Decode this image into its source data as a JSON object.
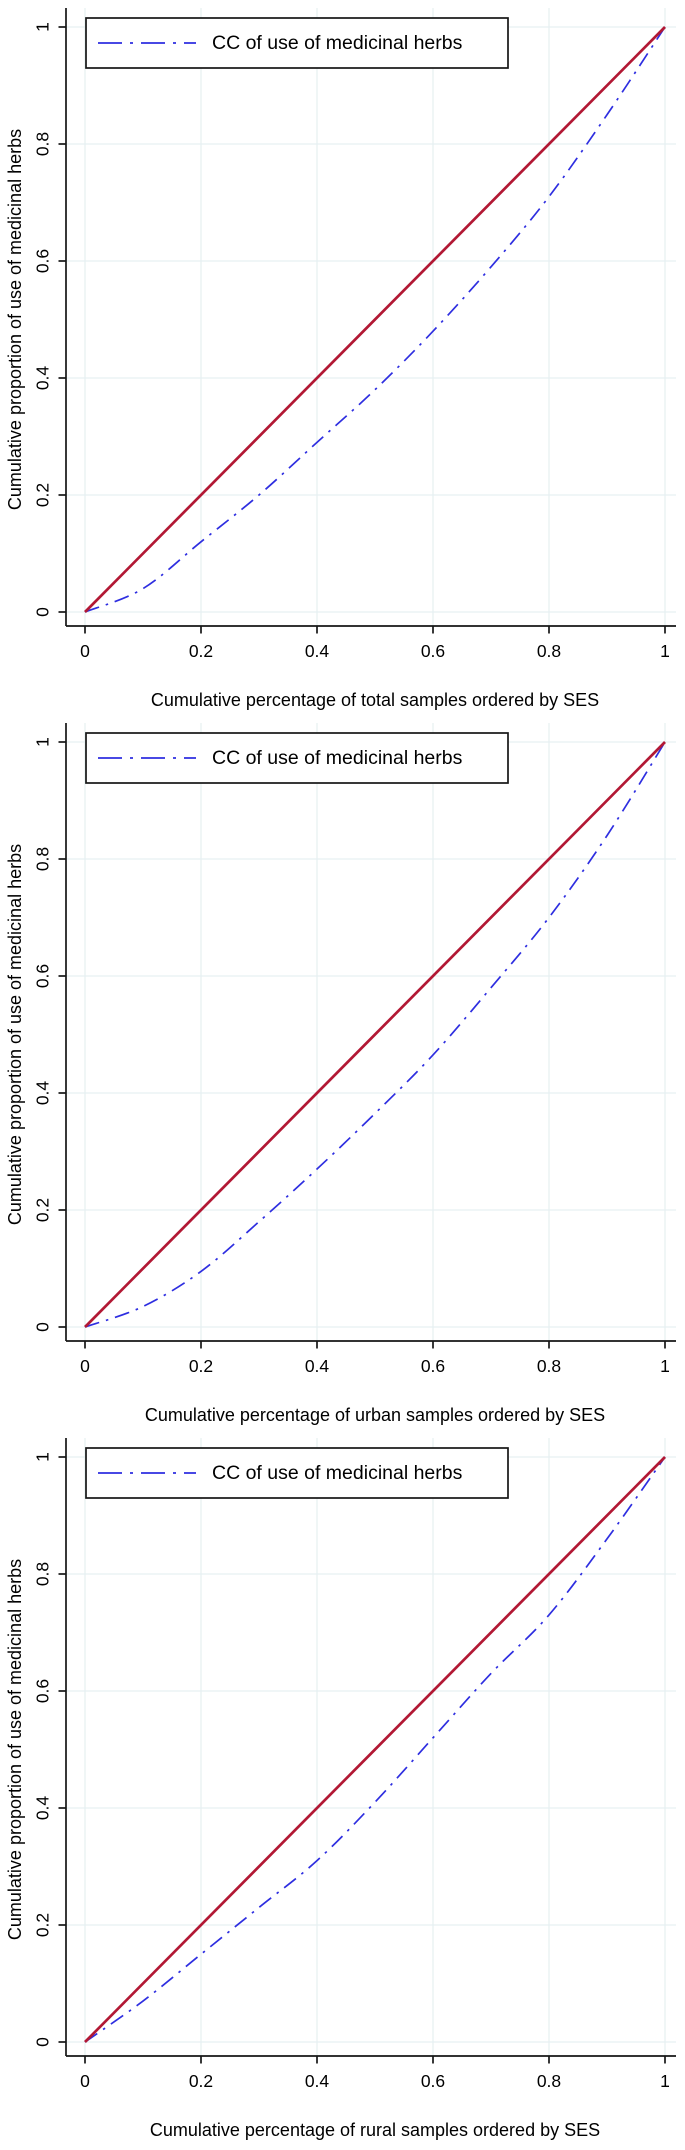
{
  "colors": {
    "background": "#ffffff",
    "grid": "#e7f0f2",
    "axis": "#161616",
    "text": "#000000",
    "cc_line": "#2e2ee0",
    "equality_line": "#b21834"
  },
  "chart_data": [
    {
      "type": "line",
      "legend": {
        "position": "top-left",
        "border": true,
        "entries": [
          {
            "label": "CC of use of medicinal herbs",
            "color": "#2e2ee0",
            "line_style": "dash-dot"
          }
        ]
      },
      "x_axis": {
        "title": "Cumulative percentage of total samples ordered by SES",
        "range": [
          0,
          1
        ],
        "tick_values": [
          0,
          0.2,
          0.4,
          0.6,
          0.8,
          1
        ],
        "tick_labels": [
          "0",
          "0.2",
          "0.4",
          "0.6",
          "0.8",
          "1"
        ]
      },
      "y_axis": {
        "title": "Cumulative proportion of use of medicinal herbs",
        "range": [
          0,
          1
        ],
        "tick_values": [
          0,
          0.2,
          0.4,
          0.6,
          0.8,
          1
        ],
        "tick_labels": [
          "0",
          "0.2",
          "0.4",
          "0.6",
          "0.8",
          "1"
        ]
      },
      "grid": true,
      "series": [
        {
          "name": "CC of use of medicinal herbs",
          "color": "#2e2ee0",
          "line_style": "dash-dot",
          "x": [
            0,
            0.1,
            0.2,
            0.3,
            0.4,
            0.5,
            0.6,
            0.7,
            0.8,
            0.9,
            1
          ],
          "y": [
            0,
            0.04,
            0.12,
            0.2,
            0.29,
            0.38,
            0.48,
            0.59,
            0.71,
            0.85,
            1
          ]
        },
        {
          "name": "Line of equality",
          "color": "#b21834",
          "line_style": "solid",
          "x": [
            0,
            1
          ],
          "y": [
            0,
            1
          ]
        }
      ]
    },
    {
      "type": "line",
      "legend": {
        "position": "top-left",
        "border": true,
        "entries": [
          {
            "label": "CC of use of medicinal herbs",
            "color": "#2e2ee0",
            "line_style": "dash-dot"
          }
        ]
      },
      "x_axis": {
        "title": "Cumulative percentage of urban samples ordered by SES",
        "range": [
          0,
          1
        ],
        "tick_values": [
          0,
          0.2,
          0.4,
          0.6,
          0.8,
          1
        ],
        "tick_labels": [
          "0",
          "0.2",
          "0.4",
          "0.6",
          "0.8",
          "1"
        ]
      },
      "y_axis": {
        "title": "Cumulative proportion of use of medicinal herbs",
        "range": [
          0,
          1
        ],
        "tick_values": [
          0,
          0.2,
          0.4,
          0.6,
          0.8,
          1
        ],
        "tick_labels": [
          "0",
          "0.2",
          "0.4",
          "0.6",
          "0.8",
          "1"
        ]
      },
      "grid": true,
      "series": [
        {
          "name": "CC of use of medicinal herbs",
          "color": "#2e2ee0",
          "line_style": "dash-dot",
          "x": [
            0,
            0.1,
            0.2,
            0.3,
            0.4,
            0.5,
            0.6,
            0.7,
            0.8,
            0.9,
            1
          ],
          "y": [
            0,
            0.035,
            0.095,
            0.18,
            0.27,
            0.365,
            0.465,
            0.58,
            0.7,
            0.84,
            1
          ]
        },
        {
          "name": "Line of equality",
          "color": "#b21834",
          "line_style": "solid",
          "x": [
            0,
            1
          ],
          "y": [
            0,
            1
          ]
        }
      ]
    },
    {
      "type": "line",
      "legend": {
        "position": "top-left",
        "border": true,
        "entries": [
          {
            "label": "CC of use of medicinal herbs",
            "color": "#2e2ee0",
            "line_style": "dash-dot"
          }
        ]
      },
      "x_axis": {
        "title": "Cumulative percentage of rural samples ordered by SES",
        "range": [
          0,
          1
        ],
        "tick_values": [
          0,
          0.2,
          0.4,
          0.6,
          0.8,
          1
        ],
        "tick_labels": [
          "0",
          "0.2",
          "0.4",
          "0.6",
          "0.8",
          "1"
        ]
      },
      "y_axis": {
        "title": "Cumulative proportion of use of medicinal herbs",
        "range": [
          0,
          1
        ],
        "tick_values": [
          0,
          0.2,
          0.4,
          0.6,
          0.8,
          1
        ],
        "tick_labels": [
          "0",
          "0.2",
          "0.4",
          "0.6",
          "0.8",
          "1"
        ]
      },
      "grid": true,
      "series": [
        {
          "name": "CC of use of medicinal herbs",
          "color": "#2e2ee0",
          "line_style": "dash-dot",
          "x": [
            0,
            0.1,
            0.2,
            0.3,
            0.4,
            0.5,
            0.6,
            0.7,
            0.8,
            0.9,
            1
          ],
          "y": [
            0,
            0.07,
            0.15,
            0.23,
            0.31,
            0.41,
            0.52,
            0.63,
            0.73,
            0.86,
            1
          ]
        },
        {
          "name": "Line of equality",
          "color": "#b21834",
          "line_style": "solid",
          "x": [
            0,
            1
          ],
          "y": [
            0,
            1
          ]
        }
      ]
    }
  ]
}
